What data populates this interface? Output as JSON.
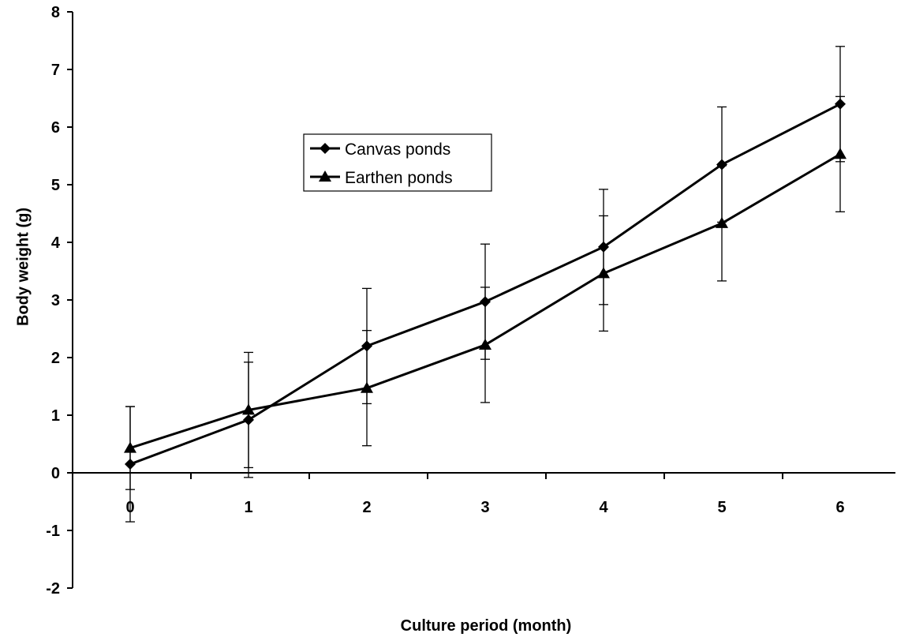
{
  "chart_data": {
    "type": "line",
    "title": "",
    "xlabel": "Culture period (month)",
    "ylabel": "Body weight (g)",
    "x": [
      0,
      1,
      2,
      3,
      4,
      5,
      6
    ],
    "x_tick_labels": [
      "0",
      "1",
      "2",
      "3",
      "4",
      "5",
      "6"
    ],
    "y_tick_labels": [
      "-2",
      "-1",
      "0",
      "1",
      "2",
      "3",
      "4",
      "5",
      "6",
      "7",
      "8"
    ],
    "ylim": [
      -2,
      8
    ],
    "grid": false,
    "legend_position": "center-left",
    "series": [
      {
        "name": "Canvas ponds",
        "marker": "diamond",
        "values": [
          0.15,
          0.92,
          2.2,
          2.97,
          3.92,
          5.35,
          6.4
        ],
        "error": [
          1.0,
          1.0,
          1.0,
          1.0,
          1.0,
          1.0,
          1.0
        ]
      },
      {
        "name": "Earthen ponds",
        "marker": "triangle",
        "values": [
          0.43,
          1.09,
          1.47,
          2.22,
          3.46,
          4.33,
          5.53
        ],
        "error": [
          0.72,
          1.0,
          1.0,
          1.0,
          1.0,
          1.0,
          1.0
        ]
      }
    ]
  }
}
